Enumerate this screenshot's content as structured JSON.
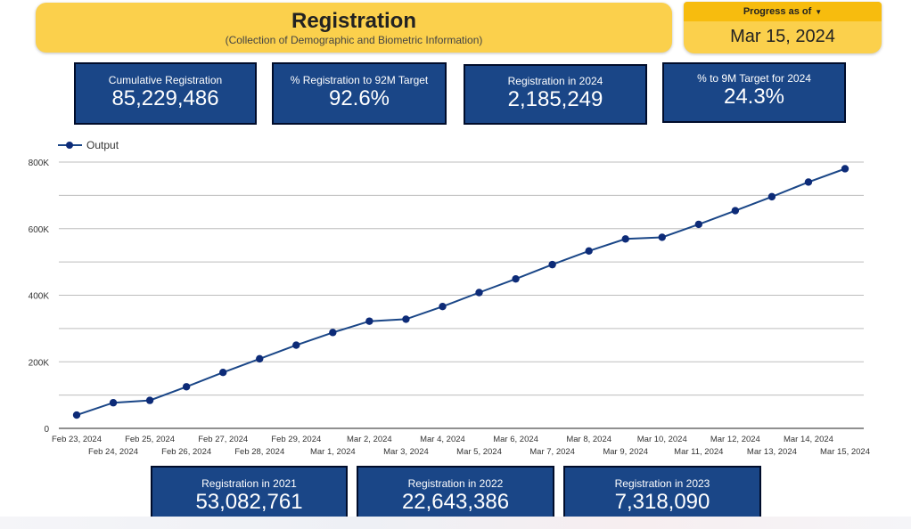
{
  "header": {
    "title": "Registration",
    "subtitle": "(Collection of Demographic and Biometric Information)"
  },
  "progress": {
    "label": "Progress as of",
    "date": "Mar 15, 2024"
  },
  "cards_top": [
    {
      "label": "Cumulative Registration",
      "value": "85,229,486"
    },
    {
      "label": "% Registration to 92M Target",
      "value": "92.6%"
    },
    {
      "label": "Registration in 2024",
      "value": "2,185,249"
    },
    {
      "label": "% to 9M Target for 2024",
      "value": "24.3%"
    }
  ],
  "cards_bottom": [
    {
      "label": "Registration in 2021",
      "value": "53,082,761"
    },
    {
      "label": "Registration in 2022",
      "value": "22,643,386"
    },
    {
      "label": "Registration in 2023",
      "value": "7,318,090"
    }
  ],
  "colors": {
    "header_bg": "#fbd04c",
    "card_bg": "#1a4687",
    "line": "#1a4687",
    "point": "#0d2b78"
  },
  "chart_data": {
    "type": "line",
    "legend": "top-left",
    "grid": true,
    "x": [
      "Feb 23, 2024",
      "Feb 24, 2024",
      "Feb 25, 2024",
      "Feb 26, 2024",
      "Feb 27, 2024",
      "Feb 28, 2024",
      "Feb 29, 2024",
      "Mar 1, 2024",
      "Mar 2, 2024",
      "Mar 3, 2024",
      "Mar 4, 2024",
      "Mar 5, 2024",
      "Mar 6, 2024",
      "Mar 7, 2024",
      "Mar 8, 2024",
      "Mar 9, 2024",
      "Mar 10, 2024",
      "Mar 11, 2024",
      "Mar 12, 2024",
      "Mar 13, 2024",
      "Mar 14, 2024",
      "Mar 15, 2024"
    ],
    "series": [
      {
        "name": "Output",
        "values": [
          40000,
          77000,
          84000,
          125000,
          168000,
          209000,
          250000,
          288000,
          322000,
          328000,
          366000,
          408000,
          449000,
          492000,
          533000,
          569000,
          574000,
          613000,
          654000,
          696000,
          740000,
          780000
        ]
      }
    ],
    "ylim": [
      0,
      800000
    ],
    "yticks": [
      0,
      200000,
      400000,
      600000,
      800000
    ],
    "ytick_labels": [
      "0",
      "200K",
      "400K",
      "600K",
      "800K"
    ]
  }
}
